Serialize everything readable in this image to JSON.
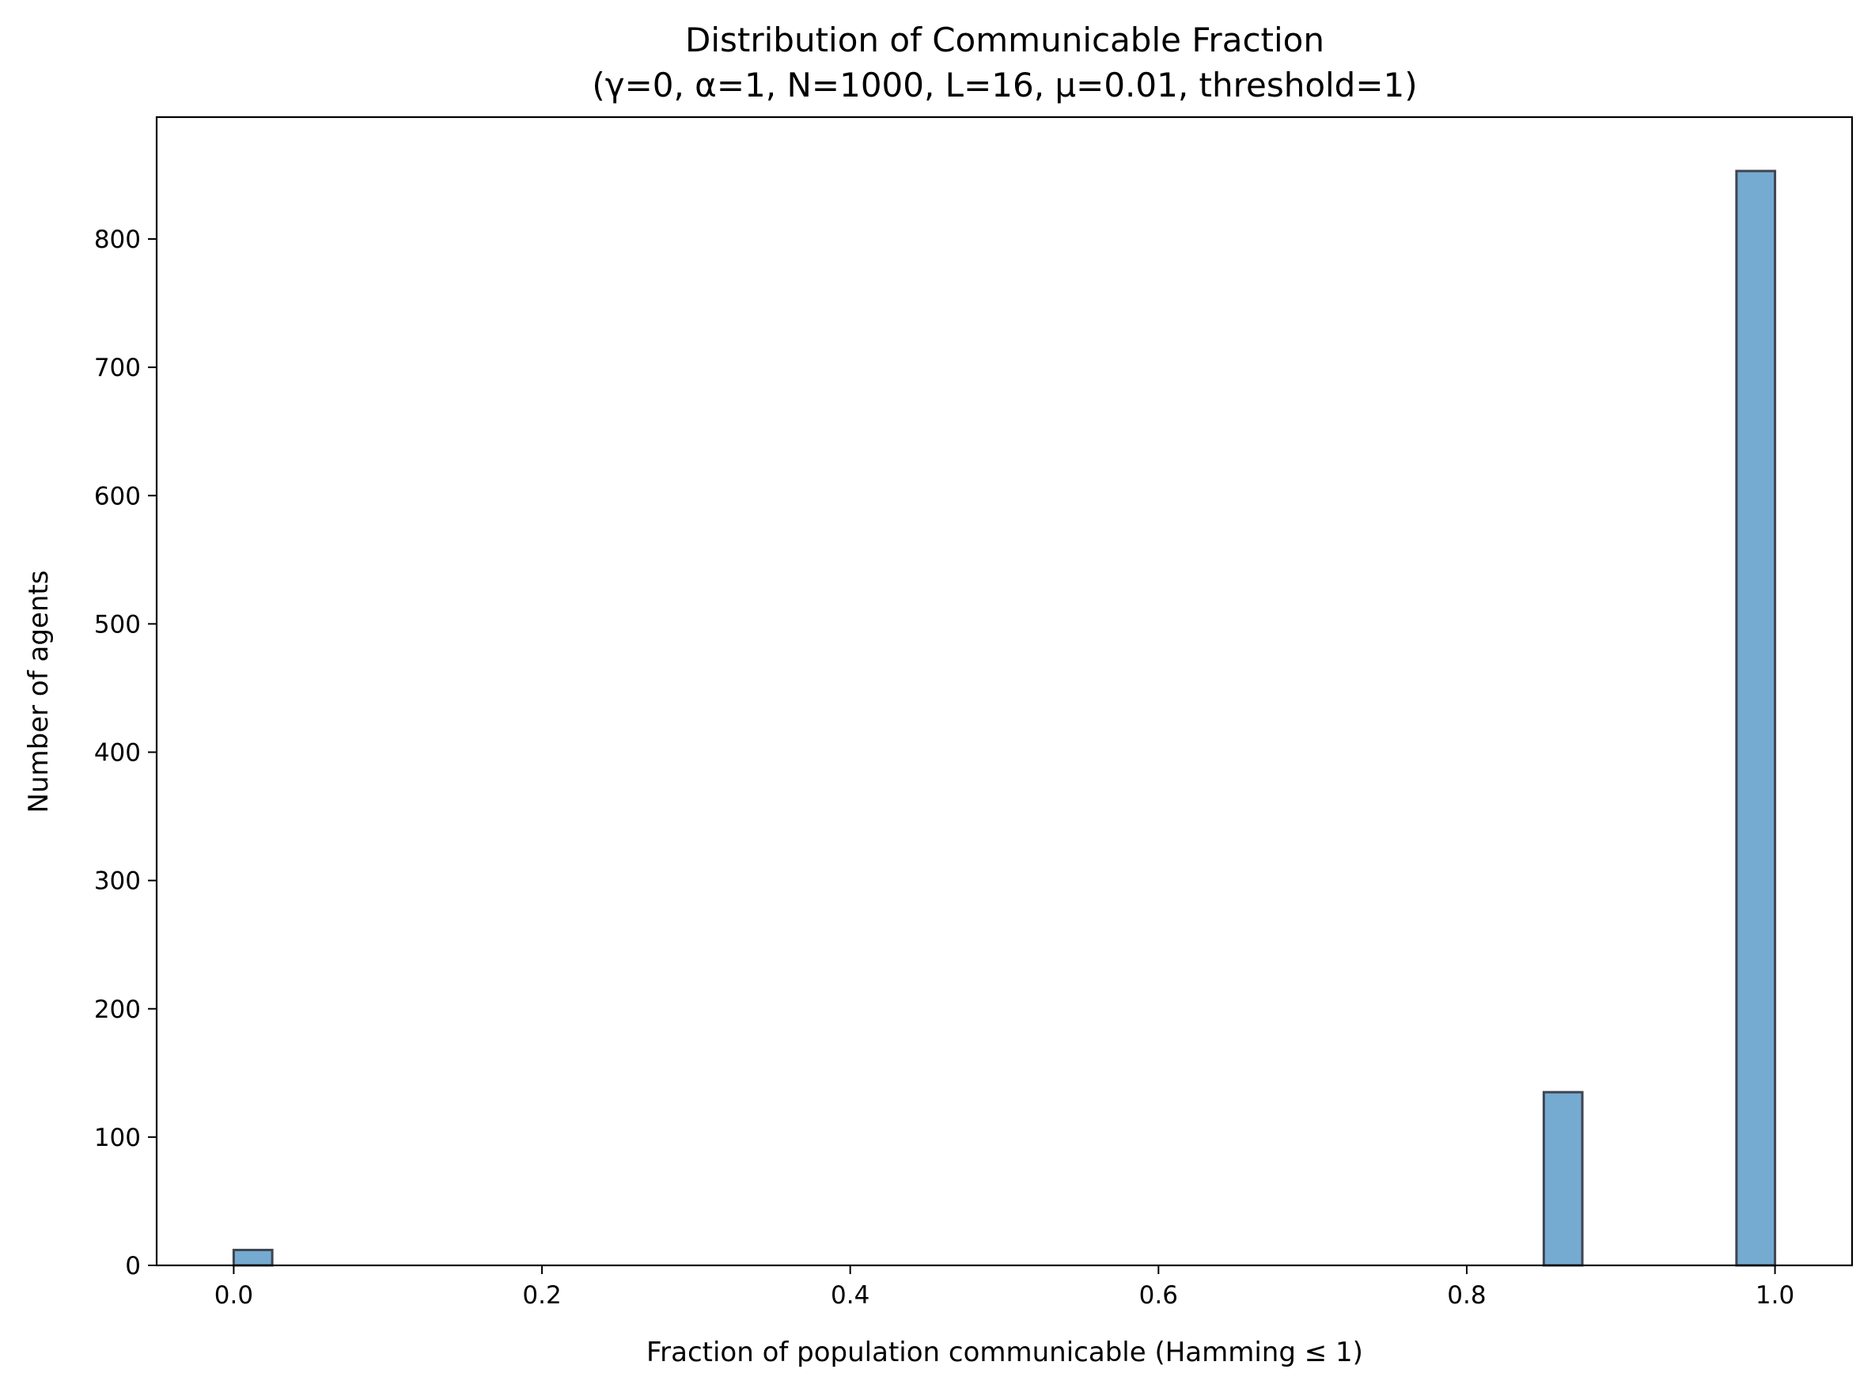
{
  "chart_data": {
    "type": "bar",
    "title": "Distribution of Communicable Fraction",
    "subtitle": "(γ=0, α=1, N=1000, L=16, μ=0.01, threshold=1)",
    "xlabel": "Fraction of population communicable (Hamming ≤ 1)",
    "ylabel": "Number of agents",
    "xlim": [
      -0.05,
      1.05
    ],
    "ylim": [
      0,
      895
    ],
    "xticks": [
      0.0,
      0.2,
      0.4,
      0.6,
      0.8,
      1.0
    ],
    "xtick_labels": [
      "0.0",
      "0.2",
      "0.4",
      "0.6",
      "0.8",
      "1.0"
    ],
    "yticks": [
      0,
      100,
      200,
      300,
      400,
      500,
      600,
      700,
      800
    ],
    "ytick_labels": [
      "0",
      "100",
      "200",
      "300",
      "400",
      "500",
      "600",
      "700",
      "800"
    ],
    "bin_width": 0.025,
    "bins": [
      {
        "start": 0.0,
        "end": 0.025,
        "count": 12
      },
      {
        "start": 0.85,
        "end": 0.875,
        "count": 135
      },
      {
        "start": 0.975,
        "end": 1.0,
        "count": 853
      }
    ],
    "bar_color": "#76abd1",
    "edge_color": "#3f4550",
    "grid": false,
    "legend": "none"
  }
}
